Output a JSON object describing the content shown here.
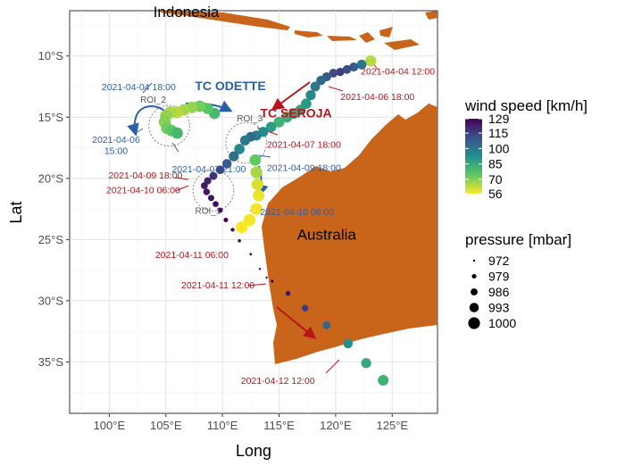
{
  "chart_data": {
    "type": "scatter",
    "title": "",
    "xlabel": "Long",
    "ylabel": "Lat",
    "xlim": [
      96.5,
      129.0
    ],
    "ylim": [
      -39.2,
      -6.3
    ],
    "x_ticks": [
      100,
      105,
      110,
      115,
      120,
      125
    ],
    "x_tick_labels": [
      "100°E",
      "105°E",
      "110°E",
      "115°E",
      "120°E",
      "125°E"
    ],
    "y_ticks": [
      -10,
      -15,
      -20,
      -25,
      -30,
      -35
    ],
    "y_tick_labels": [
      "10°S",
      "15°S",
      "20°S",
      "25°S",
      "30°S",
      "35°S"
    ],
    "grid": true,
    "land_color": "#C8651B",
    "track_color_scale": [
      "#440154",
      "#3B528B",
      "#21908C",
      "#5DC963",
      "#FDE725"
    ],
    "wind_speed_range": [
      56,
      129
    ],
    "pressure_range": [
      972,
      1000
    ],
    "land_labels": [
      {
        "text": "Indonesia",
        "lon": 106.8,
        "lat": -6.8
      },
      {
        "text": "Australia",
        "lon": 119.2,
        "lat": -25.0
      }
    ],
    "legend_wind": {
      "title": "wind speed [km/h]",
      "ticks": [
        129,
        115,
        100,
        85,
        70,
        56
      ]
    },
    "legend_pressure": {
      "title": "pressure [mbar]",
      "entries": [
        972,
        979,
        986,
        993,
        1000
      ]
    },
    "storm_names": [
      {
        "text": "TC ODETTE",
        "lon": 110.7,
        "lat": -12.8,
        "color": "#2B5FA6"
      },
      {
        "text": "TC SEROJA",
        "lon": 116.5,
        "lat": -15.0,
        "color": "#B8141B"
      }
    ],
    "rois": [
      {
        "label": "ROI_1",
        "lon": 109.2,
        "lat": -21.0,
        "r": 1.8
      },
      {
        "label": "ROI_2",
        "lon": 105.3,
        "lat": -15.7,
        "r": 1.8
      },
      {
        "label": "ROI_3",
        "lon": 112.1,
        "lat": -17.1,
        "r": 1.8
      }
    ],
    "series": [
      {
        "name": "TC SEROJA",
        "points": [
          {
            "lon": 123.1,
            "lat": -10.4,
            "wind": 64,
            "pressure": 998
          },
          {
            "lon": 122.3,
            "lat": -10.7,
            "wind": 100,
            "pressure": 994
          },
          {
            "lon": 121.6,
            "lat": -10.9,
            "wind": 108,
            "pressure": 992
          },
          {
            "lon": 121.0,
            "lat": -11.1,
            "wind": 112,
            "pressure": 991
          },
          {
            "lon": 120.4,
            "lat": -11.3,
            "wind": 115,
            "pressure": 990
          },
          {
            "lon": 119.8,
            "lat": -11.4,
            "wind": 112,
            "pressure": 991
          },
          {
            "lon": 119.2,
            "lat": -11.7,
            "wind": 108,
            "pressure": 992
          },
          {
            "lon": 118.7,
            "lat": -12.0,
            "wind": 104,
            "pressure": 993
          },
          {
            "lon": 118.2,
            "lat": -12.5,
            "wind": 100,
            "pressure": 994
          },
          {
            "lon": 117.8,
            "lat": -13.2,
            "wind": 95,
            "pressure": 995
          },
          {
            "lon": 117.4,
            "lat": -13.9,
            "wind": 90,
            "pressure": 996
          },
          {
            "lon": 116.9,
            "lat": -14.4,
            "wind": 88,
            "pressure": 996
          },
          {
            "lon": 116.3,
            "lat": -14.7,
            "wind": 86,
            "pressure": 997
          },
          {
            "lon": 115.7,
            "lat": -15.0,
            "wind": 84,
            "pressure": 997
          },
          {
            "lon": 115.0,
            "lat": -15.4,
            "wind": 82,
            "pressure": 997
          },
          {
            "lon": 114.3,
            "lat": -15.8,
            "wind": 88,
            "pressure": 996
          },
          {
            "lon": 113.6,
            "lat": -16.2,
            "wind": 94,
            "pressure": 995
          },
          {
            "lon": 113.0,
            "lat": -16.5,
            "wind": 98,
            "pressure": 995
          },
          {
            "lon": 112.5,
            "lat": -16.6,
            "wind": 104,
            "pressure": 994
          },
          {
            "lon": 112.0,
            "lat": -16.9,
            "wind": 100,
            "pressure": 995
          },
          {
            "lon": 111.5,
            "lat": -17.6,
            "wind": 95,
            "pressure": 996
          },
          {
            "lon": 111.0,
            "lat": -18.2,
            "wind": 102,
            "pressure": 995
          },
          {
            "lon": 110.4,
            "lat": -18.8,
            "wind": 108,
            "pressure": 993
          },
          {
            "lon": 109.8,
            "lat": -19.3,
            "wind": 114,
            "pressure": 991
          },
          {
            "lon": 109.2,
            "lat": -19.8,
            "wind": 118,
            "pressure": 989
          },
          {
            "lon": 108.7,
            "lat": -20.2,
            "wind": 121,
            "pressure": 987
          },
          {
            "lon": 108.4,
            "lat": -20.6,
            "wind": 123,
            "pressure": 986
          },
          {
            "lon": 108.6,
            "lat": -21.1,
            "wind": 124,
            "pressure": 985
          },
          {
            "lon": 109.0,
            "lat": -21.6,
            "wind": 125,
            "pressure": 984
          },
          {
            "lon": 109.4,
            "lat": -22.1,
            "wind": 126,
            "pressure": 983
          },
          {
            "lon": 109.8,
            "lat": -22.6,
            "wind": 127,
            "pressure": 981
          },
          {
            "lon": 110.3,
            "lat": -23.4,
            "wind": 128,
            "pressure": 979
          },
          {
            "lon": 110.9,
            "lat": -24.2,
            "wind": 128,
            "pressure": 977
          },
          {
            "lon": 111.5,
            "lat": -25.1,
            "wind": 129,
            "pressure": 975
          },
          {
            "lon": 112.5,
            "lat": -26.2,
            "wind": 129,
            "pressure": 973
          },
          {
            "lon": 113.3,
            "lat": -27.4,
            "wind": 129,
            "pressure": 972
          },
          {
            "lon": 113.9,
            "lat": -28.1,
            "wind": 129,
            "pressure": 972
          },
          {
            "lon": 114.4,
            "lat": -28.4,
            "wind": 128,
            "pressure": 974
          },
          {
            "lon": 115.8,
            "lat": -29.4,
            "wind": 124,
            "pressure": 980
          },
          {
            "lon": 117.3,
            "lat": -30.6,
            "wind": 116,
            "pressure": 985
          },
          {
            "lon": 119.2,
            "lat": -32.0,
            "wind": 105,
            "pressure": 989
          },
          {
            "lon": 121.1,
            "lat": -33.5,
            "wind": 92,
            "pressure": 993
          },
          {
            "lon": 122.7,
            "lat": -35.1,
            "wind": 85,
            "pressure": 995
          },
          {
            "lon": 124.2,
            "lat": -36.5,
            "wind": 82,
            "pressure": 997
          }
        ]
      },
      {
        "name": "TC ODETTE",
        "points": [
          {
            "lon": 109.3,
            "lat": -14.7,
            "wind": 80,
            "pressure": 998
          },
          {
            "lon": 108.7,
            "lat": -14.3,
            "wind": 76,
            "pressure": 998
          },
          {
            "lon": 108.0,
            "lat": -14.1,
            "wind": 72,
            "pressure": 999
          },
          {
            "lon": 107.3,
            "lat": -14.2,
            "wind": 68,
            "pressure": 999
          },
          {
            "lon": 106.6,
            "lat": -14.4,
            "wind": 66,
            "pressure": 999
          },
          {
            "lon": 106.0,
            "lat": -14.6,
            "wind": 64,
            "pressure": 1000
          },
          {
            "lon": 105.4,
            "lat": -14.6,
            "wind": 66,
            "pressure": 1000
          },
          {
            "lon": 105.0,
            "lat": -14.9,
            "wind": 68,
            "pressure": 1000
          },
          {
            "lon": 104.9,
            "lat": -15.4,
            "wind": 70,
            "pressure": 1000
          },
          {
            "lon": 105.1,
            "lat": -15.9,
            "wind": 72,
            "pressure": 1000
          },
          {
            "lon": 105.5,
            "lat": -16.1,
            "wind": 75,
            "pressure": 999
          },
          {
            "lon": 106.0,
            "lat": -16.3,
            "wind": 80,
            "pressure": 999
          },
          {
            "lon": 112.9,
            "lat": -18.5,
            "wind": 74,
            "pressure": 999
          },
          {
            "lon": 113.0,
            "lat": -19.5,
            "wind": 66,
            "pressure": 1000
          },
          {
            "lon": 113.1,
            "lat": -20.5,
            "wind": 60,
            "pressure": 1000
          },
          {
            "lon": 113.2,
            "lat": -21.4,
            "wind": 58,
            "pressure": 1000
          },
          {
            "lon": 113.0,
            "lat": -22.5,
            "wind": 57,
            "pressure": 1000
          },
          {
            "lon": 112.4,
            "lat": -23.4,
            "wind": 57,
            "pressure": 1000
          },
          {
            "lon": 111.7,
            "lat": -24.0,
            "wind": 56,
            "pressure": 1000
          }
        ]
      }
    ],
    "annotations": [
      {
        "text": "2021-04-04 12:00",
        "color": "#B8141B",
        "lon": 125.5,
        "lat": -11.5
      },
      {
        "text": "2021-04-06 18:00",
        "color": "#B8141B",
        "lon": 123.7,
        "lat": -13.6
      },
      {
        "text": "2021-04-07 18:00",
        "color": "#B8141B",
        "lon": 117.2,
        "lat": -17.5
      },
      {
        "text": "2021-04-09 18:00",
        "color": "#B8141B",
        "lon": 103.2,
        "lat": -20.0
      },
      {
        "text": "2021-04-10 06:00",
        "color": "#B8141B",
        "lon": 103.0,
        "lat": -21.2
      },
      {
        "text": "2021-04-11 06:00",
        "color": "#B8141B",
        "lon": 107.3,
        "lat": -26.5
      },
      {
        "text": "2021-04-11 12:00",
        "color": "#B8141B",
        "lon": 109.6,
        "lat": -29.0
      },
      {
        "text": "2021-04-12 12:00",
        "color": "#B8141B",
        "lon": 114.9,
        "lat": -36.8
      },
      {
        "text": "2021-04-04 18:00",
        "color": "#2B5FA6",
        "lon": 102.6,
        "lat": -12.8
      },
      {
        "text": "2021-04-06",
        "color": "#2B5FA6",
        "lon": 100.6,
        "lat": -17.1
      },
      {
        "text": "15:00",
        "color": "#2B5FA6",
        "lon": 100.6,
        "lat": -18.0
      },
      {
        "text": "2021-04-07 21:00",
        "color": "#2B5FA6",
        "lon": 108.8,
        "lat": -19.5
      },
      {
        "text": "2021-04-09 18:00",
        "color": "#2B5FA6",
        "lon": 117.2,
        "lat": -19.4
      },
      {
        "text": "2021-04-10 06:00",
        "color": "#2B5FA6",
        "lon": 116.6,
        "lat": -23.0
      }
    ]
  }
}
